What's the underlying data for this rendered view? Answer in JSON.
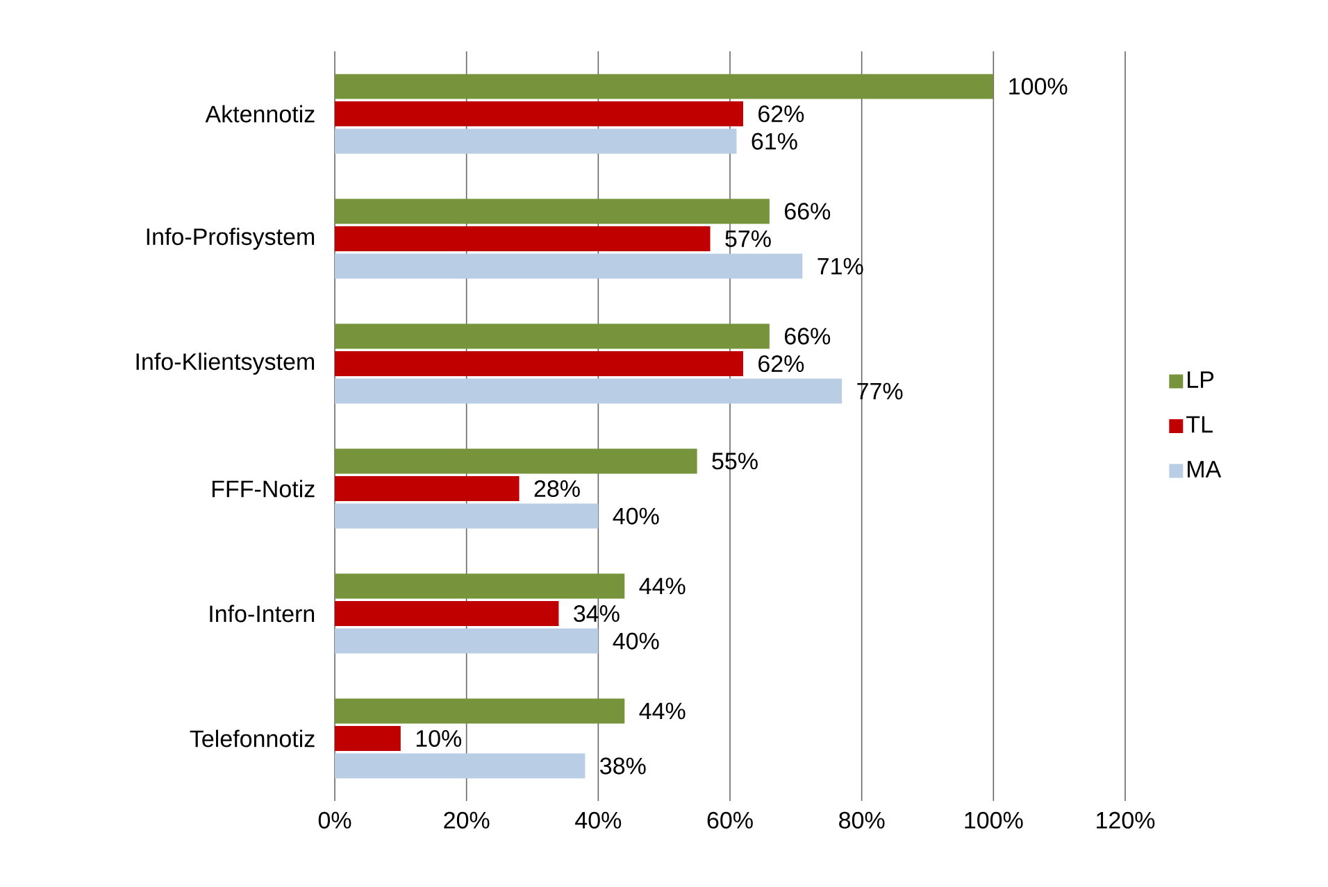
{
  "chart_data": {
    "type": "bar",
    "orientation": "horizontal",
    "categories": [
      "Aktennotiz",
      "Info-Profisystem",
      "Info-Klientsystem",
      "FFF-Notiz",
      "Info-Intern",
      "Telefonnotiz"
    ],
    "series": [
      {
        "name": "LP",
        "color": "#77933c",
        "values": [
          100,
          66,
          66,
          55,
          44,
          44
        ],
        "value_labels": [
          "100%",
          "66%",
          "66%",
          "55%",
          "44%",
          "44%"
        ]
      },
      {
        "name": "TL",
        "color": "#c00000",
        "values": [
          62,
          57,
          62,
          28,
          34,
          10
        ],
        "value_labels": [
          "62%",
          "57%",
          "62%",
          "28%",
          "34%",
          "10%"
        ]
      },
      {
        "name": "MA",
        "color": "#b9cde5",
        "values": [
          61,
          71,
          77,
          40,
          40,
          38
        ],
        "value_labels": [
          "61%",
          "71%",
          "77%",
          "40%",
          "40%",
          "38%"
        ]
      }
    ],
    "xlim": [
      0,
      120
    ],
    "xticks": [
      {
        "value": 0,
        "label": "0%"
      },
      {
        "value": 20,
        "label": "20%"
      },
      {
        "value": 40,
        "label": "40%"
      },
      {
        "value": 60,
        "label": "60%"
      },
      {
        "value": 80,
        "label": "80%"
      },
      {
        "value": 100,
        "label": "100%"
      },
      {
        "value": 120,
        "label": "120%"
      }
    ],
    "grid": "x",
    "legend": "right"
  }
}
